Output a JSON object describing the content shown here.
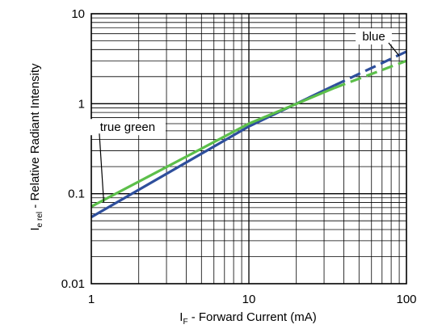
{
  "chart_data": {
    "type": "line",
    "title": "",
    "x_scale": "log",
    "y_scale": "log",
    "xlim": [
      1,
      100
    ],
    "ylim": [
      0.01,
      10
    ],
    "grid": true,
    "x_ticks": [
      {
        "value": 1,
        "label": "1"
      },
      {
        "value": 10,
        "label": "10"
      },
      {
        "value": 100,
        "label": "100"
      }
    ],
    "y_ticks": [
      {
        "value": 10,
        "label": "10"
      },
      {
        "value": 1,
        "label": "1"
      },
      {
        "value": 0.1,
        "label": "0.1"
      },
      {
        "value": 0.01,
        "label": "0.01"
      }
    ],
    "xlabel": {
      "main": "I",
      "sub": "F",
      "rest": " - Forward Current (mA)"
    },
    "ylabel": {
      "main": "I",
      "sub": "e rel",
      "rest": " - Relative Radiant Intensity"
    },
    "series": [
      {
        "name": "blue",
        "color": "#2e4f9c",
        "solid": [
          [
            1,
            0.055
          ],
          [
            10,
            0.56
          ],
          [
            35,
            1.6
          ]
        ],
        "dashed": [
          [
            35,
            1.6
          ],
          [
            100,
            3.8
          ]
        ]
      },
      {
        "name": "true green",
        "color": "#5cbf4a",
        "solid": [
          [
            1,
            0.072
          ],
          [
            10,
            0.6
          ],
          [
            35,
            1.5
          ]
        ],
        "dashed": [
          [
            35,
            1.5
          ],
          [
            100,
            3.0
          ]
        ]
      }
    ],
    "annotations": [
      {
        "text": "blue",
        "series": "blue",
        "at": [
          62,
          5.6
        ],
        "points_to": [
          90,
          3.4
        ]
      },
      {
        "text": "true green",
        "series": "true green",
        "at": [
          1.7,
          0.55
        ],
        "points_to": [
          1.2,
          0.08
        ]
      }
    ]
  }
}
